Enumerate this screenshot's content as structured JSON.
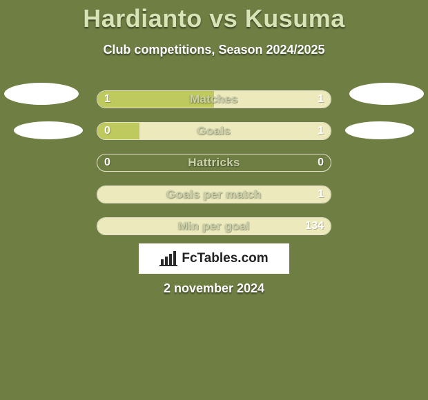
{
  "background_color": "#6f7f44",
  "title": {
    "text": "Hardianto vs Kusuma",
    "color": "#d9e4b6",
    "fontsize": 36
  },
  "subtitle": {
    "text": "Club competitions, Season 2024/2025",
    "color": "#ffffff",
    "fontsize": 18
  },
  "players": {
    "left_name": "Hardianto",
    "right_name": "Kusuma"
  },
  "bar_style": {
    "outer_width": 340,
    "outer_height": 26,
    "left_color": "#bfca5e",
    "right_color": "#eceabd",
    "label_color": "#c9cfa8",
    "value_color": "#ffffff",
    "border_color": "#e4e0c8",
    "label_fontsize": 17,
    "value_fontsize": 16
  },
  "stats": [
    {
      "label": "Matches",
      "left_value": "1",
      "right_value": "1",
      "left_pct": 50,
      "right_pct": 50
    },
    {
      "label": "Goals",
      "left_value": "0",
      "right_value": "1",
      "left_pct": 18,
      "right_pct": 82
    },
    {
      "label": "Hattricks",
      "left_value": "0",
      "right_value": "0",
      "left_pct": 0,
      "right_pct": 0
    },
    {
      "label": "Goals per match",
      "left_value": "",
      "right_value": "1",
      "left_pct": 0,
      "right_pct": 100
    },
    {
      "label": "Min per goal",
      "left_value": "",
      "right_value": "134",
      "left_pct": 0,
      "right_pct": 100
    }
  ],
  "ellipses_color": "#ffffff",
  "brand": {
    "text": "FcTables.com",
    "bg": "#ffffff",
    "text_color": "#222222",
    "icon_color": "#2a2a2a"
  },
  "date": {
    "text": "2 november 2024",
    "color": "#ffffff",
    "fontsize": 18
  }
}
